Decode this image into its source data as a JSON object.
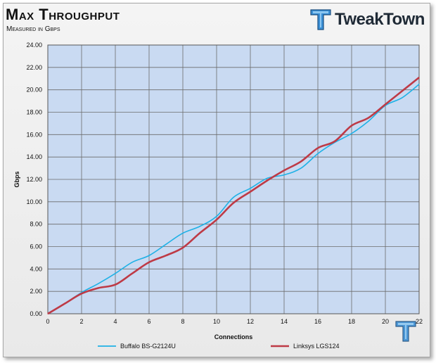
{
  "header": {
    "title": "Max Throughput",
    "subtitle": "Measured in Gbps",
    "brand": "TweakTown"
  },
  "colors": {
    "plot_background": "#c9daf2",
    "grid": "#6b6b6b",
    "series_buffalo": "#1fb1e6",
    "series_linksys": "#be3a46",
    "logo_blue": "#3a8fd6"
  },
  "chart_data": {
    "type": "line",
    "xlabel": "Connections",
    "ylabel": "Gbps",
    "xlim": [
      0,
      22
    ],
    "ylim": [
      0,
      24
    ],
    "x_ticks": [
      "0",
      "2",
      "4",
      "6",
      "8",
      "10",
      "12",
      "14",
      "16",
      "18",
      "20",
      "22"
    ],
    "y_ticks": [
      "0.00",
      "2.00",
      "4.00",
      "6.00",
      "8.00",
      "10.00",
      "12.00",
      "14.00",
      "16.00",
      "18.00",
      "20.00",
      "22.00",
      "24.00"
    ],
    "grid": true,
    "legend_position": "bottom",
    "x": [
      0,
      1,
      2,
      3,
      4,
      5,
      6,
      7,
      8,
      9,
      10,
      11,
      12,
      13,
      14,
      15,
      16,
      17,
      18,
      19,
      20,
      21,
      22
    ],
    "series": [
      {
        "name": "Buffalo BS-G2124U",
        "values": [
          0.0,
          0.9,
          1.9,
          2.7,
          3.6,
          4.6,
          5.2,
          6.2,
          7.2,
          7.8,
          8.7,
          10.4,
          11.2,
          12.1,
          12.4,
          13.0,
          14.3,
          15.3,
          16.1,
          17.2,
          18.6,
          19.3,
          20.5
        ]
      },
      {
        "name": "Linksys LGS124",
        "values": [
          0.0,
          0.9,
          1.8,
          2.3,
          2.6,
          3.6,
          4.6,
          5.2,
          5.9,
          7.2,
          8.4,
          9.9,
          10.9,
          11.9,
          12.8,
          13.6,
          14.8,
          15.4,
          16.8,
          17.5,
          18.7,
          19.9,
          21.1
        ]
      }
    ]
  }
}
